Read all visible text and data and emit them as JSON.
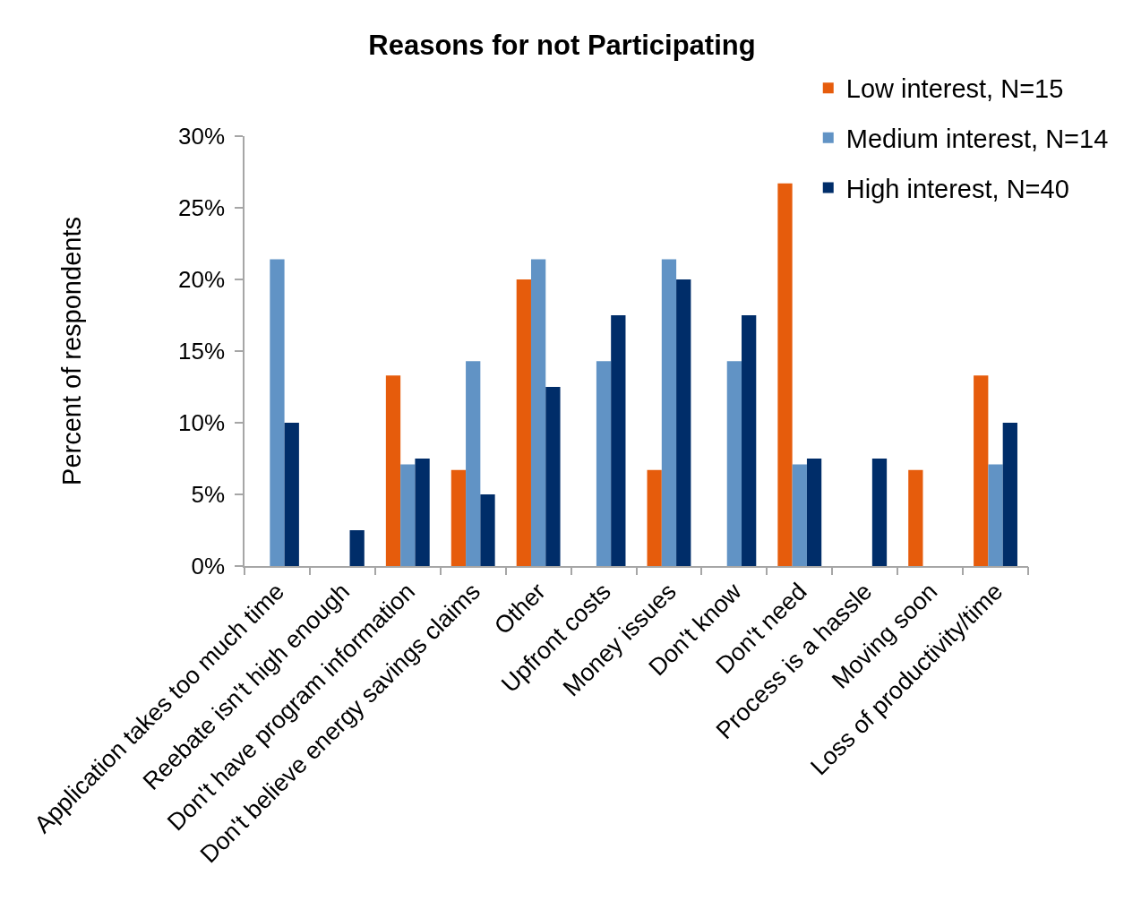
{
  "chart_data": {
    "type": "bar",
    "title": "Reasons for not Participating",
    "ylabel": "Percent of respondents",
    "categories": [
      "Application takes too much time",
      "Reebate isn't high enough",
      "Don't have program information",
      "Don't believe energy savings claims",
      "Other",
      "Upfront costs",
      "Money issues",
      "Don't know",
      "Don't need",
      "Process is a hassle",
      "Moving soon",
      "Loss of productivity/time"
    ],
    "series": [
      {
        "name": "Low interest, N=15",
        "color": "#e65c0c",
        "values": [
          0,
          0,
          13.3,
          6.7,
          20,
          0,
          6.7,
          0,
          26.7,
          0,
          6.7,
          13.3
        ]
      },
      {
        "name": "Medium interest, N=14",
        "color": "#6193c5",
        "values": [
          21.4,
          0,
          7.1,
          14.3,
          21.4,
          14.3,
          21.4,
          14.3,
          7.1,
          0,
          0,
          7.1
        ]
      },
      {
        "name": "High interest, N=40",
        "color": "#002d69",
        "values": [
          10,
          2.5,
          7.5,
          5,
          12.5,
          17.5,
          20,
          17.5,
          7.5,
          7.5,
          0,
          10
        ]
      }
    ],
    "ylim": [
      0,
      30
    ],
    "yticks": [
      {
        "value": 0,
        "label": "0%"
      },
      {
        "value": 5,
        "label": "5%"
      },
      {
        "value": 10,
        "label": "10%"
      },
      {
        "value": 15,
        "label": "15%"
      },
      {
        "value": 20,
        "label": "20%"
      },
      {
        "value": 25,
        "label": "25%"
      },
      {
        "value": 30,
        "label": "30%"
      }
    ],
    "grid": false,
    "legend": "top right"
  }
}
